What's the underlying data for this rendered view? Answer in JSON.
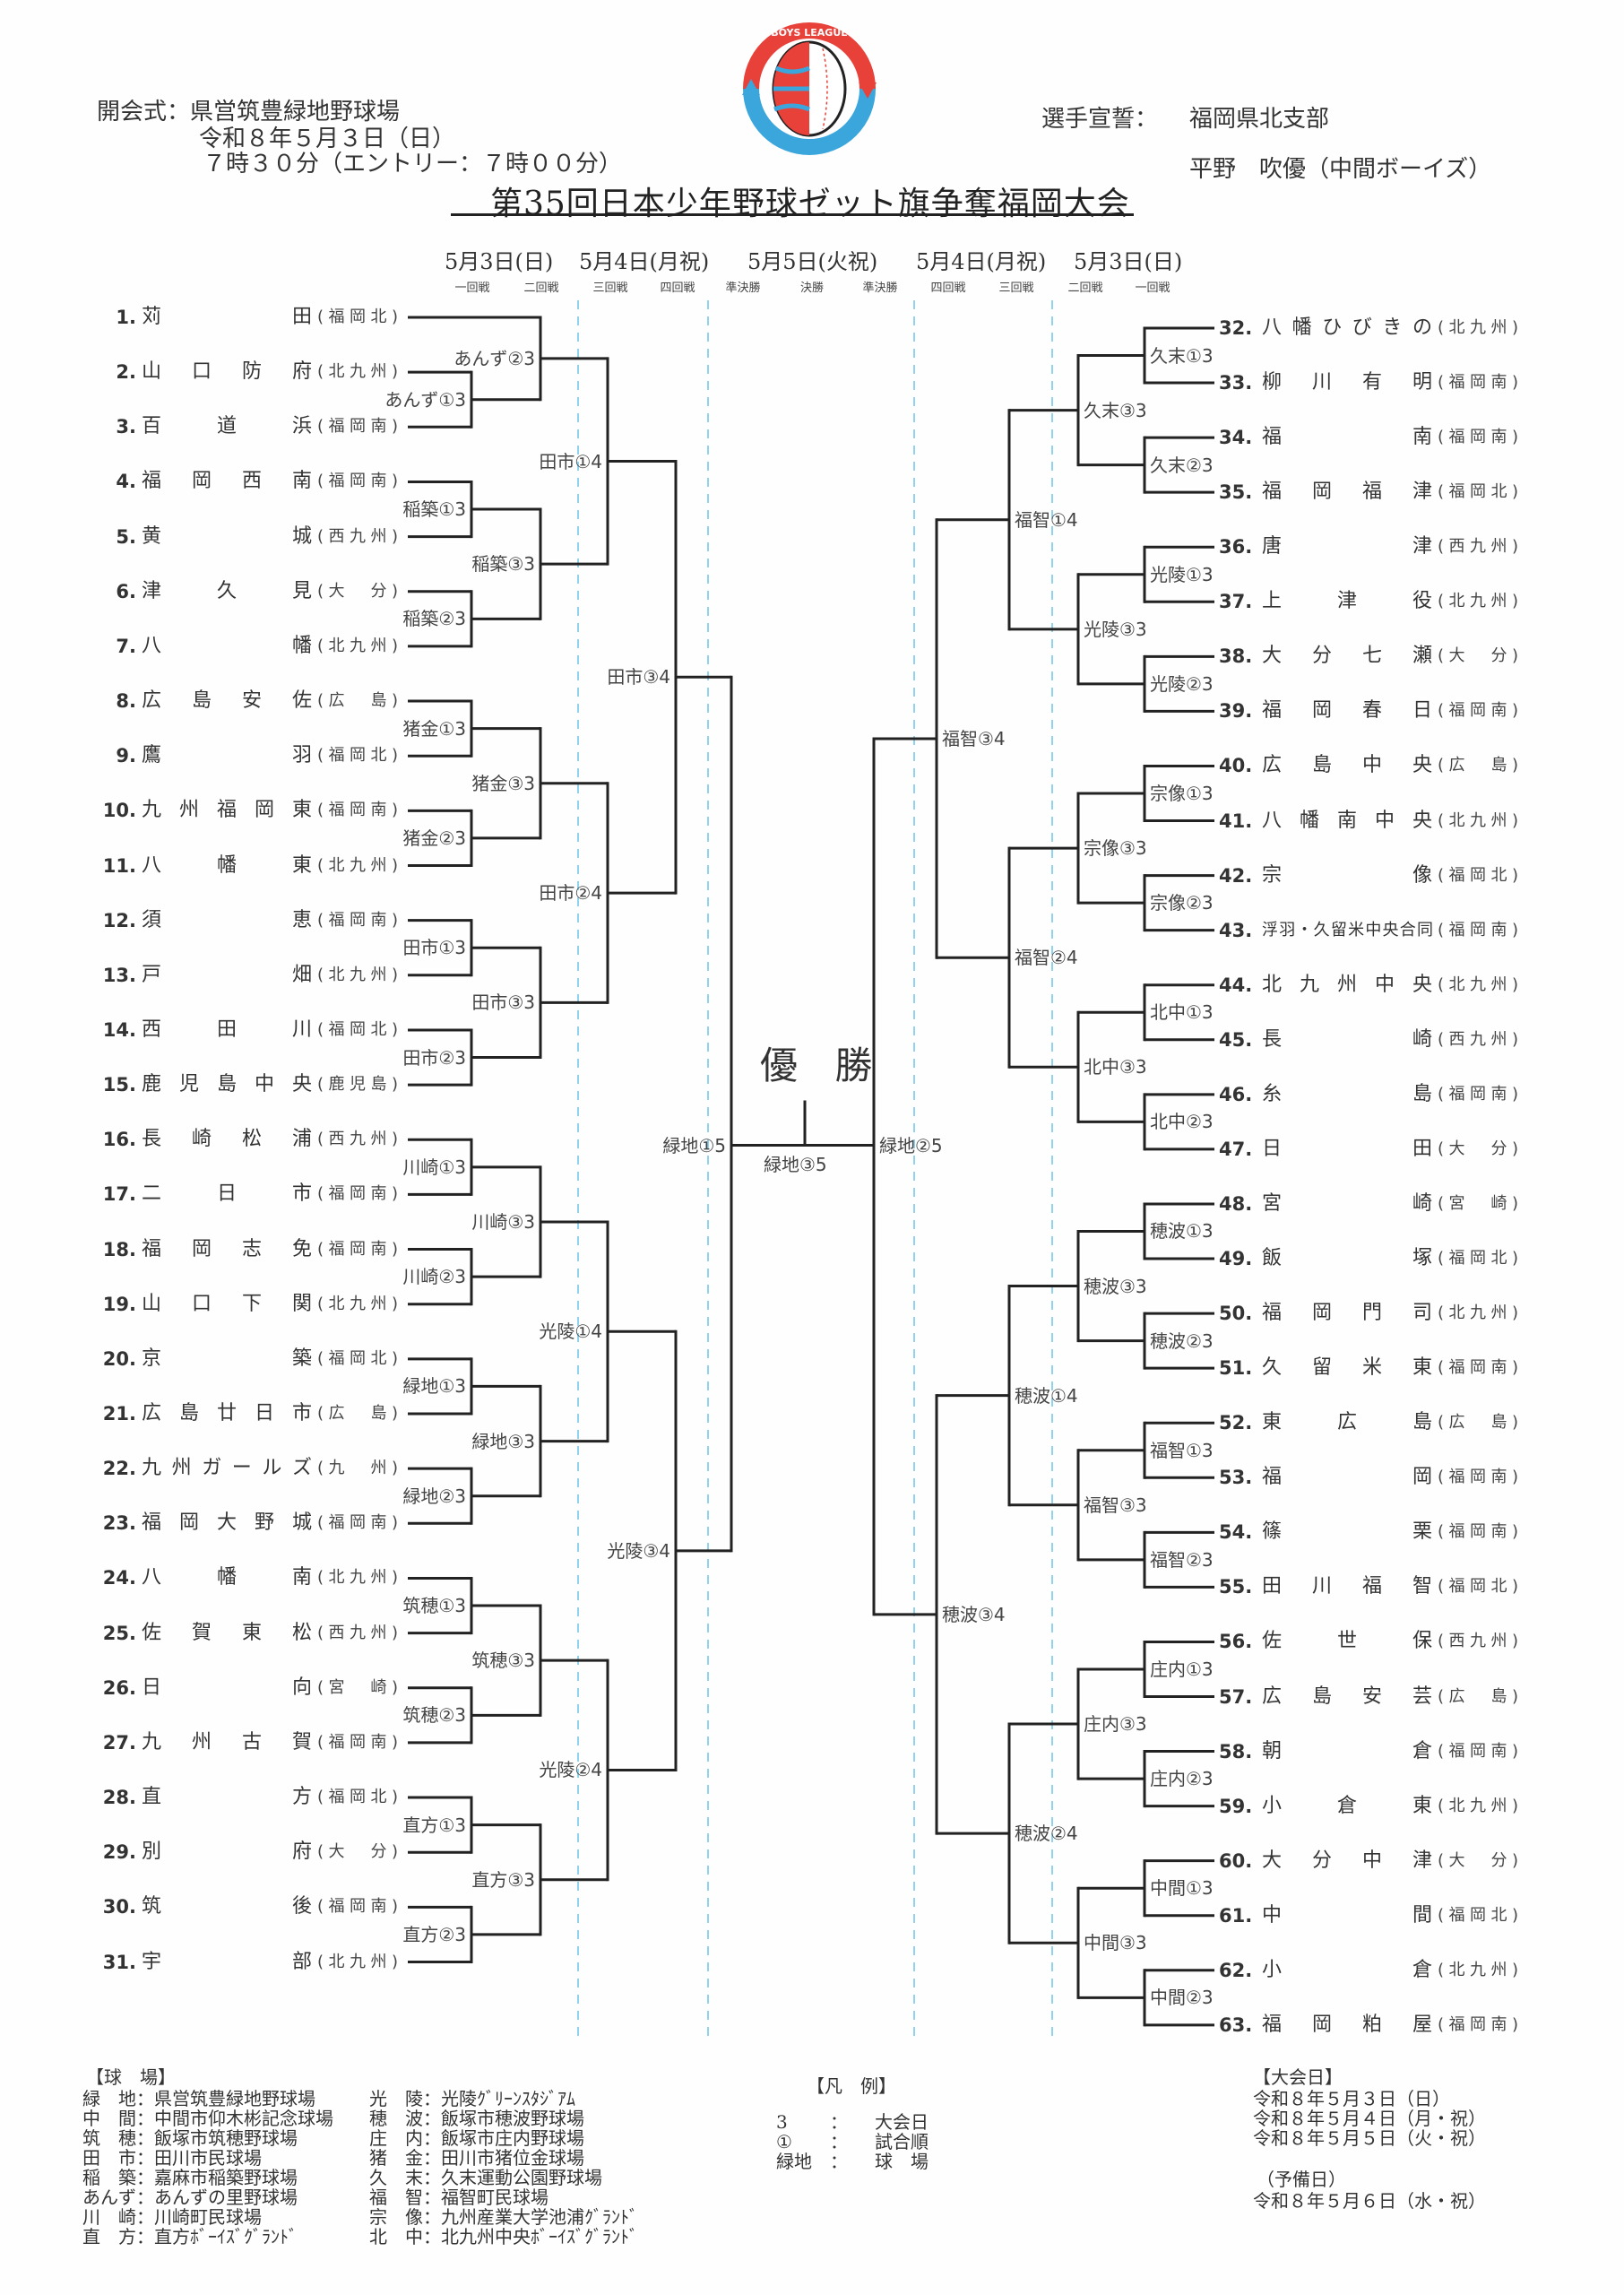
{
  "header": {
    "opening_label": "開会式：県営筑豊緑地野球場",
    "opening_date": "令和８年５月３日（日）",
    "opening_time": "７時３０分（エントリー：７時００分）",
    "oath_label": "選手宣誓：",
    "oath_branch": "福岡県北支部",
    "oath_player": "平野　吹優（中間ボーイズ）",
    "title": "第35回日本少年野球ゼット旗争奪福岡大会",
    "logo_text": "BOYS LEAGUE / (公財)日本少年野球連盟"
  },
  "dates": [
    "5月3日(日)",
    "5月4日(月祝)",
    "5月5日(火祝)",
    "5月4日(月祝)",
    "5月3日(日)"
  ],
  "rounds": [
    "一回戦",
    "二回戦",
    "三回戦",
    "四回戦",
    "準決勝",
    "決勝",
    "準決勝",
    "四回戦",
    "三回戦",
    "二回戦",
    "一回戦"
  ],
  "champion_label": "優 勝",
  "final_label": "緑地③5",
  "teams": [
    {
      "no": "1.",
      "name": "苅田",
      "region": "(福岡北)"
    },
    {
      "no": "2.",
      "name": "山口防府",
      "region": "(北九州)"
    },
    {
      "no": "3.",
      "name": "百道浜",
      "region": "(福岡南)"
    },
    {
      "no": "4.",
      "name": "福岡西南",
      "region": "(福岡南)"
    },
    {
      "no": "5.",
      "name": "黄城",
      "region": "(西九州)"
    },
    {
      "no": "6.",
      "name": "津久見",
      "region": "(大　分)"
    },
    {
      "no": "7.",
      "name": "八幡",
      "region": "(北九州)"
    },
    {
      "no": "8.",
      "name": "広島安佐",
      "region": "(広　島)"
    },
    {
      "no": "9.",
      "name": "鷹羽",
      "region": "(福岡北)"
    },
    {
      "no": "10.",
      "name": "九州福岡東",
      "region": "(福岡南)"
    },
    {
      "no": "11.",
      "name": "八幡東",
      "region": "(北九州)"
    },
    {
      "no": "12.",
      "name": "須恵",
      "region": "(福岡南)"
    },
    {
      "no": "13.",
      "name": "戸畑",
      "region": "(北九州)"
    },
    {
      "no": "14.",
      "name": "西田川",
      "region": "(福岡北)"
    },
    {
      "no": "15.",
      "name": "鹿児島中央",
      "region": "(鹿児島)"
    },
    {
      "no": "16.",
      "name": "長崎松浦",
      "region": "(西九州)"
    },
    {
      "no": "17.",
      "name": "二日市",
      "region": "(福岡南)"
    },
    {
      "no": "18.",
      "name": "福岡志免",
      "region": "(福岡南)"
    },
    {
      "no": "19.",
      "name": "山口下関",
      "region": "(北九州)"
    },
    {
      "no": "20.",
      "name": "京築",
      "region": "(福岡北)"
    },
    {
      "no": "21.",
      "name": "広島廿日市",
      "region": "(広　島)"
    },
    {
      "no": "22.",
      "name": "九州ガールズ",
      "region": "(九　州)"
    },
    {
      "no": "23.",
      "name": "福岡大野城",
      "region": "(福岡南)"
    },
    {
      "no": "24.",
      "name": "八幡南",
      "region": "(北九州)"
    },
    {
      "no": "25.",
      "name": "佐賀東松",
      "region": "(西九州)"
    },
    {
      "no": "26.",
      "name": "日向",
      "region": "(宮　崎)"
    },
    {
      "no": "27.",
      "name": "九州古賀",
      "region": "(福岡南)"
    },
    {
      "no": "28.",
      "name": "直方",
      "region": "(福岡北)"
    },
    {
      "no": "29.",
      "name": "別府",
      "region": "(大　分)"
    },
    {
      "no": "30.",
      "name": "筑後",
      "region": "(福岡南)"
    },
    {
      "no": "31.",
      "name": "宇部",
      "region": "(北九州)"
    },
    {
      "no": "32.",
      "name": "八幡ひびきの",
      "region": "(北九州)"
    },
    {
      "no": "33.",
      "name": "柳川有明",
      "region": "(福岡南)"
    },
    {
      "no": "34.",
      "name": "福南",
      "region": "(福岡南)"
    },
    {
      "no": "35.",
      "name": "福岡福津",
      "region": "(福岡北)"
    },
    {
      "no": "36.",
      "name": "唐津",
      "region": "(西九州)"
    },
    {
      "no": "37.",
      "name": "上津役",
      "region": "(北九州)"
    },
    {
      "no": "38.",
      "name": "大分七瀬",
      "region": "(大　分)"
    },
    {
      "no": "39.",
      "name": "福岡春日",
      "region": "(福岡南)"
    },
    {
      "no": "40.",
      "name": "広島中央",
      "region": "(広　島)"
    },
    {
      "no": "41.",
      "name": "八幡南中央",
      "region": "(北九州)"
    },
    {
      "no": "42.",
      "name": "宗像",
      "region": "(福岡北)"
    },
    {
      "no": "43.",
      "name": "浮羽・久留米中央合同",
      "region": "(福岡南)"
    },
    {
      "no": "44.",
      "name": "北九州中央",
      "region": "(北九州)"
    },
    {
      "no": "45.",
      "name": "長崎",
      "region": "(西九州)"
    },
    {
      "no": "46.",
      "name": "糸島",
      "region": "(福岡南)"
    },
    {
      "no": "47.",
      "name": "日田",
      "region": "(大　分)"
    },
    {
      "no": "48.",
      "name": "宮崎",
      "region": "(宮　崎)"
    },
    {
      "no": "49.",
      "name": "飯塚",
      "region": "(福岡北)"
    },
    {
      "no": "50.",
      "name": "福岡門司",
      "region": "(北九州)"
    },
    {
      "no": "51.",
      "name": "久留米東",
      "region": "(福岡南)"
    },
    {
      "no": "52.",
      "name": "東広島",
      "region": "(広　島)"
    },
    {
      "no": "53.",
      "name": "福岡",
      "region": "(福岡南)"
    },
    {
      "no": "54.",
      "name": "篠栗",
      "region": "(福岡南)"
    },
    {
      "no": "55.",
      "name": "田川福智",
      "region": "(福岡北)"
    },
    {
      "no": "56.",
      "name": "佐世保",
      "region": "(西九州)"
    },
    {
      "no": "57.",
      "name": "広島安芸",
      "region": "(広　島)"
    },
    {
      "no": "58.",
      "name": "朝倉",
      "region": "(福岡南)"
    },
    {
      "no": "59.",
      "name": "小倉東",
      "region": "(北九州)"
    },
    {
      "no": "60.",
      "name": "大分中津",
      "region": "(大　分)"
    },
    {
      "no": "61.",
      "name": "中間",
      "region": "(福岡北)"
    },
    {
      "no": "62.",
      "name": "小倉",
      "region": "(北九州)"
    },
    {
      "no": "63.",
      "name": "福岡粕屋",
      "region": "(福岡南)"
    }
  ],
  "bracket_left": {
    "label": "緑地①5",
    "a": {
      "label": "田市③4",
      "a": {
        "label": "田市①4",
        "a": {
          "label": "あんず②3",
          "a": 1,
          "b": {
            "label": "あんず①3",
            "a": 2,
            "b": 3
          }
        },
        "b": {
          "label": "稲築③3",
          "a": {
            "label": "稲築①3",
            "a": 4,
            "b": 5
          },
          "b": {
            "label": "稲築②3",
            "a": 6,
            "b": 7
          }
        }
      },
      "b": {
        "label": "田市②4",
        "a": {
          "label": "猪金③3",
          "a": {
            "label": "猪金①3",
            "a": 8,
            "b": 9
          },
          "b": {
            "label": "猪金②3",
            "a": 10,
            "b": 11
          }
        },
        "b": {
          "label": "田市③3",
          "a": {
            "label": "田市①3",
            "a": 12,
            "b": 13
          },
          "b": {
            "label": "田市②3",
            "a": 14,
            "b": 15
          }
        }
      }
    },
    "b": {
      "label": "光陵③4",
      "a": {
        "label": "光陵①4",
        "a": {
          "label": "川崎③3",
          "a": {
            "label": "川崎①3",
            "a": 16,
            "b": 17
          },
          "b": {
            "label": "川崎②3",
            "a": 18,
            "b": 19
          }
        },
        "b": {
          "label": "緑地③3",
          "a": {
            "label": "緑地①3",
            "a": 20,
            "b": 21
          },
          "b": {
            "label": "緑地②3",
            "a": 22,
            "b": 23
          }
        }
      },
      "b": {
        "label": "光陵②4",
        "a": {
          "label": "筑穂③3",
          "a": {
            "label": "筑穂①3",
            "a": 24,
            "b": 25
          },
          "b": {
            "label": "筑穂②3",
            "a": 26,
            "b": 27
          }
        },
        "b": {
          "label": "直方③3",
          "a": {
            "label": "直方①3",
            "a": 28,
            "b": 29
          },
          "b": {
            "label": "直方②3",
            "a": 30,
            "b": 31
          }
        }
      }
    }
  },
  "bracket_right": {
    "label": "緑地②5",
    "a": {
      "label": "福智③4",
      "a": {
        "label": "福智①4",
        "a": {
          "label": "久末③3",
          "a": {
            "label": "久末①3",
            "a": 32,
            "b": 33
          },
          "b": {
            "label": "久末②3",
            "a": 34,
            "b": 35
          }
        },
        "b": {
          "label": "光陵③3",
          "a": {
            "label": "光陵①3",
            "a": 36,
            "b": 37
          },
          "b": {
            "label": "光陵②3",
            "a": 38,
            "b": 39
          }
        }
      },
      "b": {
        "label": "福智②4",
        "a": {
          "label": "宗像③3",
          "a": {
            "label": "宗像①3",
            "a": 40,
            "b": 41
          },
          "b": {
            "label": "宗像②3",
            "a": 42,
            "b": 43
          }
        },
        "b": {
          "label": "北中③3",
          "a": {
            "label": "北中①3",
            "a": 44,
            "b": 45
          },
          "b": {
            "label": "北中②3",
            "a": 46,
            "b": 47
          }
        }
      }
    },
    "b": {
      "label": "穂波③4",
      "a": {
        "label": "穂波①4",
        "a": {
          "label": "穂波③3",
          "a": {
            "label": "穂波①3",
            "a": 48,
            "b": 49
          },
          "b": {
            "label": "穂波②3",
            "a": 50,
            "b": 51
          }
        },
        "b": {
          "label": "福智③3",
          "a": {
            "label": "福智①3",
            "a": 52,
            "b": 53
          },
          "b": {
            "label": "福智②3",
            "a": 54,
            "b": 55
          }
        }
      },
      "b": {
        "label": "穂波②4",
        "a": {
          "label": "庄内③3",
          "a": {
            "label": "庄内①3",
            "a": 56,
            "b": 57
          },
          "b": {
            "label": "庄内②3",
            "a": 58,
            "b": 59
          }
        },
        "b": {
          "label": "中間③3",
          "a": {
            "label": "中間①3",
            "a": 60,
            "b": 61
          },
          "b": {
            "label": "中間②3",
            "a": 62,
            "b": 63
          }
        }
      }
    }
  },
  "footer": {
    "venues_heading": "【球　場】",
    "venues_left": [
      "緑　地：県営筑豊緑地野球場",
      "中　間：中間市仰木彬記念球場",
      "筑　穂：飯塚市筑穂野球場",
      "田　市：田川市民球場",
      "稲　築：嘉麻市稲築野球場",
      "あんず：あんずの里野球場",
      "川　崎：川崎町民球場",
      "直　方：直方ﾎﾞｰｲｽﾞｸﾞﾗﾝﾄﾞ"
    ],
    "venues_right": [
      "光　陵：光陵ｸﾞﾘｰﾝｽﾀｼﾞｱﾑ",
      "穂　波：飯塚市穂波野球場",
      "庄　内：飯塚市庄内野球場",
      "猪　金：田川市猪位金球場",
      "久　末：久末運動公園野球場",
      "福　智：福智町民球場",
      "宗　像：九州産業大学池浦ｸﾞﾗﾝﾄﾞ",
      "北　中：北九州中央ﾎﾞｰｲｽﾞｸﾞﾗﾝﾄﾞ"
    ],
    "legend_heading": "【凡　例】",
    "legend": [
      {
        "key": "3",
        "sep": "：",
        "value": "大会日"
      },
      {
        "key": "①",
        "sep": "：",
        "value": "試合順"
      },
      {
        "key": "緑地",
        "sep": "：",
        "value": "球　場"
      }
    ],
    "days_heading": "【大会日】",
    "days": [
      "令和８年５月３日（日）",
      "令和８年５月４日（月・祝）",
      "令和８年５月５日（火・祝）"
    ],
    "reserve_heading": "（予備日）",
    "reserve_day": "令和８年５月６日（水・祝）"
  },
  "colors": {
    "line": "#222222",
    "guide": "#8fd3ef",
    "logo_red": "#e8413a",
    "logo_blue": "#3aa6dc"
  }
}
